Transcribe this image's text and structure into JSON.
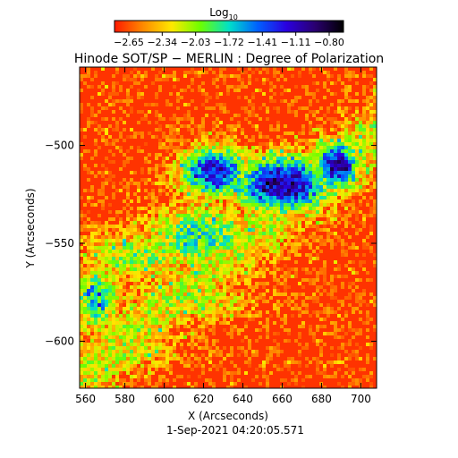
{
  "colorbar": {
    "label_main": "Log",
    "label_sub": "10",
    "ticks": [
      "−2.65",
      "−2.34",
      "−2.03",
      "−1.72",
      "−1.41",
      "−1.11",
      "−0.80"
    ],
    "colors": [
      "#ff1a00",
      "#ff8a00",
      "#ffe800",
      "#6cff00",
      "#00e0c8",
      "#0060ff",
      "#2a00e0",
      "#2a0070",
      "#000000"
    ]
  },
  "chart_data": {
    "type": "heatmap",
    "title": "Hinode SOT/SP − MERLIN : Degree of Polarization",
    "xlabel": "X (Arcseconds)",
    "ylabel": "Y (Arcseconds)",
    "xlim": [
      557,
      708
    ],
    "ylim": [
      -624,
      -460
    ],
    "x_ticks": [
      560,
      580,
      600,
      620,
      640,
      660,
      680,
      700
    ],
    "y_ticks": [
      -500,
      -550,
      -600
    ],
    "y_tick_labels": [
      "−500",
      "−550",
      "−600"
    ],
    "value_range": [
      -2.65,
      -0.8
    ],
    "value_scale": "log10",
    "timestamp": "1-Sep-2021 04:20:05.571"
  }
}
